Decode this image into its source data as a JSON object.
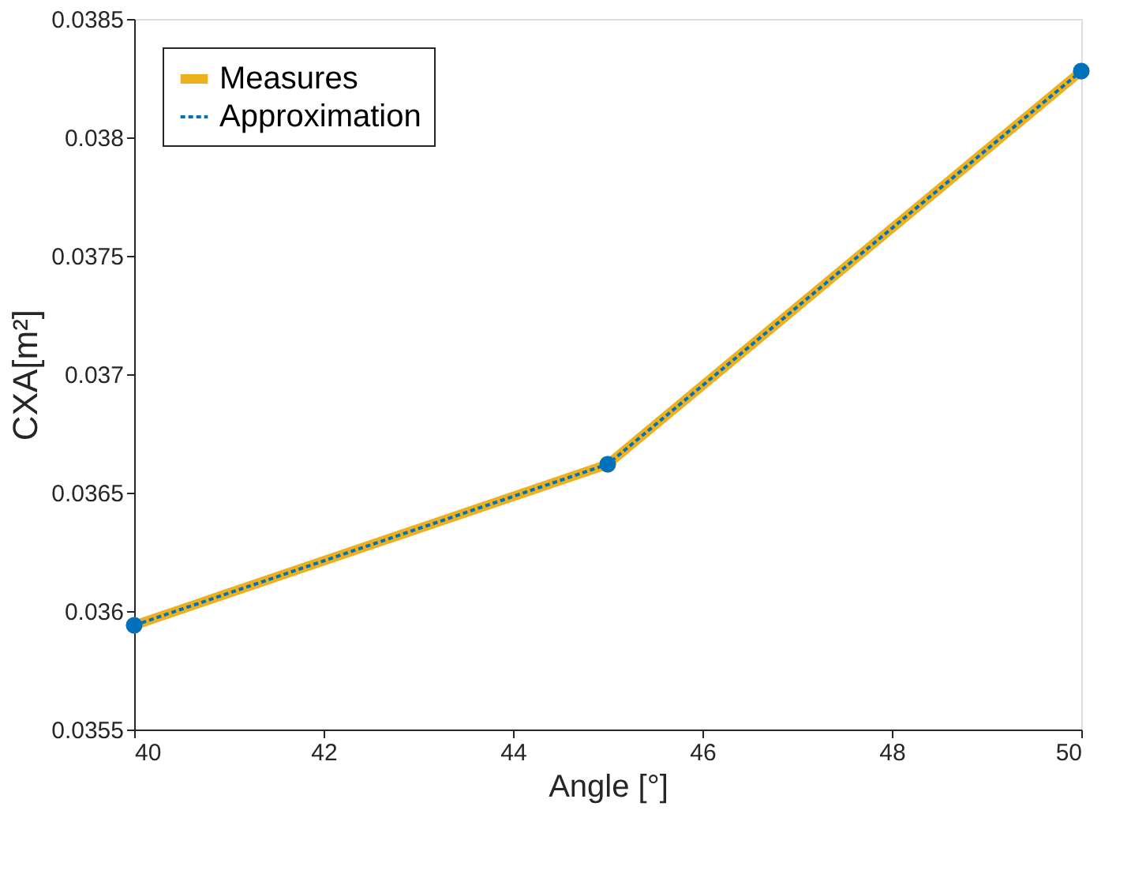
{
  "chart_data": {
    "type": "line",
    "xlabel": "Angle [°]",
    "ylabel": "CXA[m²]",
    "x": [
      40,
      45,
      50
    ],
    "series": [
      {
        "name": "Measures",
        "color": "#edb120",
        "values": [
          0.03594,
          0.03662,
          0.03828
        ],
        "line_style": "solid",
        "marker": "circle"
      },
      {
        "name": "Approximation",
        "color": "#0072bd",
        "values": [
          0.03594,
          0.03662,
          0.03828
        ],
        "line_style": "dotted",
        "marker": "circle"
      }
    ],
    "xlim": [
      40,
      50
    ],
    "xticks": [
      40,
      42,
      44,
      46,
      48,
      50
    ],
    "ylim": [
      0.0355,
      0.0385
    ],
    "yticks": [
      0.0355,
      0.036,
      0.0365,
      0.037,
      0.0375,
      0.038,
      0.0385
    ],
    "grid": false,
    "legend": "top left"
  }
}
